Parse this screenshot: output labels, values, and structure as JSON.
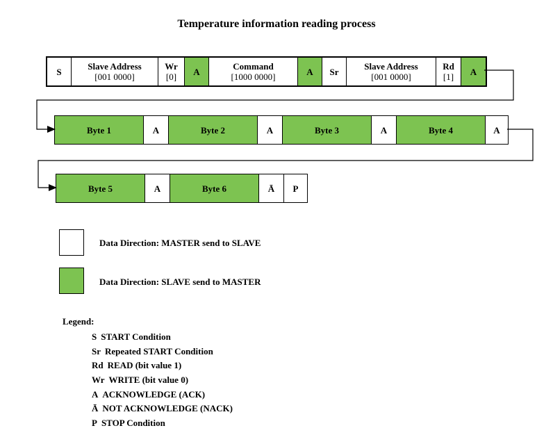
{
  "title": "Temperature information reading process",
  "row1": [
    {
      "label": "S",
      "sub": "",
      "green": false
    },
    {
      "label": "Slave Address",
      "sub": "[001 0000]",
      "green": false
    },
    {
      "label": "Wr",
      "sub": "[0]",
      "green": false
    },
    {
      "label": "A",
      "sub": "",
      "green": true
    },
    {
      "label": "Command",
      "sub": "[1000 0000]",
      "green": false
    },
    {
      "label": "A",
      "sub": "",
      "green": true
    },
    {
      "label": "Sr",
      "sub": "",
      "green": false
    },
    {
      "label": "Slave Address",
      "sub": "[001 0000]",
      "green": false
    },
    {
      "label": "Rd",
      "sub": "[1]",
      "green": false
    },
    {
      "label": "A",
      "sub": "",
      "green": true
    }
  ],
  "row2": [
    {
      "label": "Byte 1",
      "green": true
    },
    {
      "label": "A",
      "green": false
    },
    {
      "label": "Byte 2",
      "green": true
    },
    {
      "label": "A",
      "green": false
    },
    {
      "label": "Byte 3",
      "green": true
    },
    {
      "label": "A",
      "green": false
    },
    {
      "label": "Byte 4",
      "green": true
    },
    {
      "label": "A",
      "green": false
    }
  ],
  "row3": [
    {
      "label": "Byte 5",
      "green": true
    },
    {
      "label": "A",
      "green": false
    },
    {
      "label": "Byte 6",
      "green": true
    },
    {
      "label": "Ā",
      "green": false
    },
    {
      "label": "P",
      "green": false
    }
  ],
  "direction_legend": {
    "master_to_slave": "Data Direction: MASTER send to SLAVE",
    "slave_to_master": "Data Direction: SLAVE send to MASTER"
  },
  "legend": {
    "title": "Legend:",
    "items": [
      {
        "symbol": "S",
        "text": "START Condition"
      },
      {
        "symbol": "Sr",
        "text": "Repeated START Condition"
      },
      {
        "symbol": "Rd",
        "text": "READ (bit value 1)"
      },
      {
        "symbol": "Wr",
        "text": "WRITE (bit value 0)"
      },
      {
        "symbol": "A",
        "text": "ACKNOWLEDGE (ACK)"
      },
      {
        "symbol": "Ā",
        "text": "NOT ACKNOWLEDGE (NACK)"
      },
      {
        "symbol": "P",
        "text": "STOP Condition"
      }
    ]
  },
  "colors": {
    "slave_to_master": "#7dc351",
    "master_to_slave": "#ffffff",
    "border": "#000000"
  }
}
